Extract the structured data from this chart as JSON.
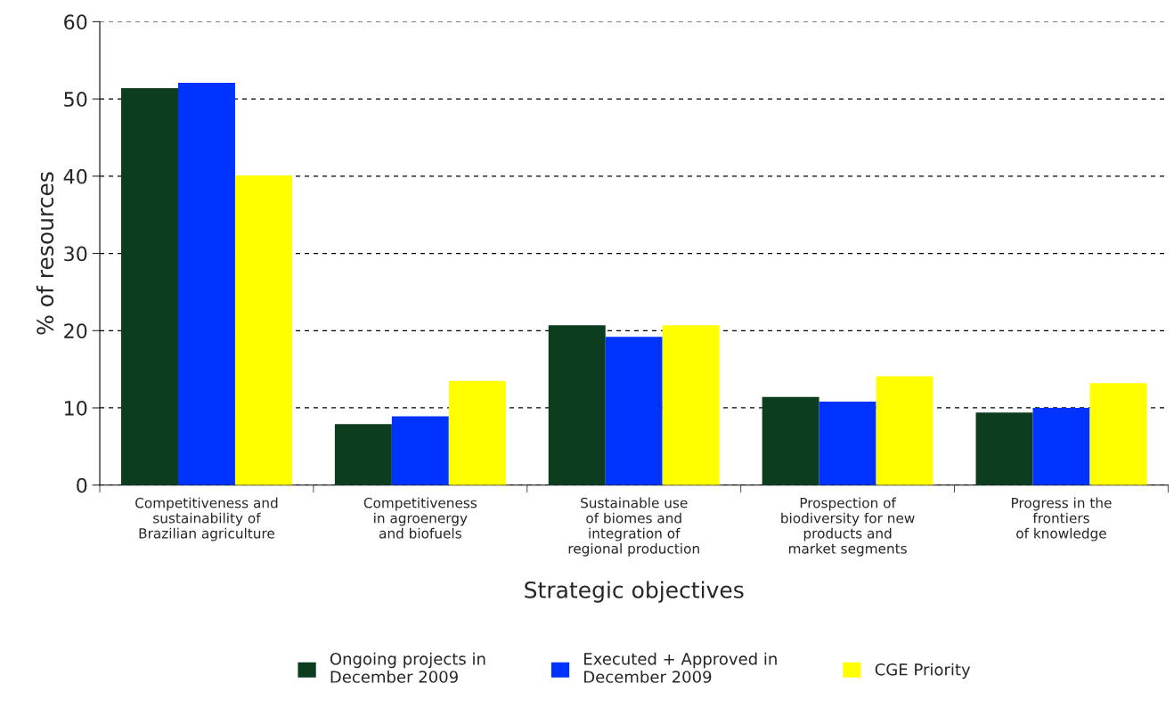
{
  "chart_data": {
    "type": "bar",
    "categories": [
      "Competitiveness and\nsustainability of\nBrazilian agriculture",
      "Competitiveness\nin agroenergy\nand biofuels",
      "Sustainable use\nof biomes and\nintegration of\nregional production",
      "Prospection of\nbiodiversity for new\nproducts and\nmarket segments",
      "Progress in the\nfrontiers\nof knowledge"
    ],
    "series": [
      {
        "name": "Ongoing projects in\nDecember 2009",
        "color": "#0b3d1e",
        "values": [
          51.4,
          7.9,
          20.7,
          11.4,
          9.4
        ]
      },
      {
        "name": "Executed + Approved in\nDecember 2009",
        "color": "#0033ff",
        "values": [
          52.1,
          8.9,
          19.2,
          10.8,
          10.0
        ]
      },
      {
        "name": "CGE Priority",
        "color": "#ffff00",
        "values": [
          40.1,
          13.5,
          20.7,
          14.1,
          13.2
        ]
      }
    ],
    "xlabel": "Strategic objectives",
    "ylabel": "% of resources",
    "ylim": [
      0,
      60
    ],
    "yticks": [
      0,
      10,
      20,
      30,
      40,
      50,
      60
    ],
    "grid": "y",
    "legend": "bottom"
  }
}
